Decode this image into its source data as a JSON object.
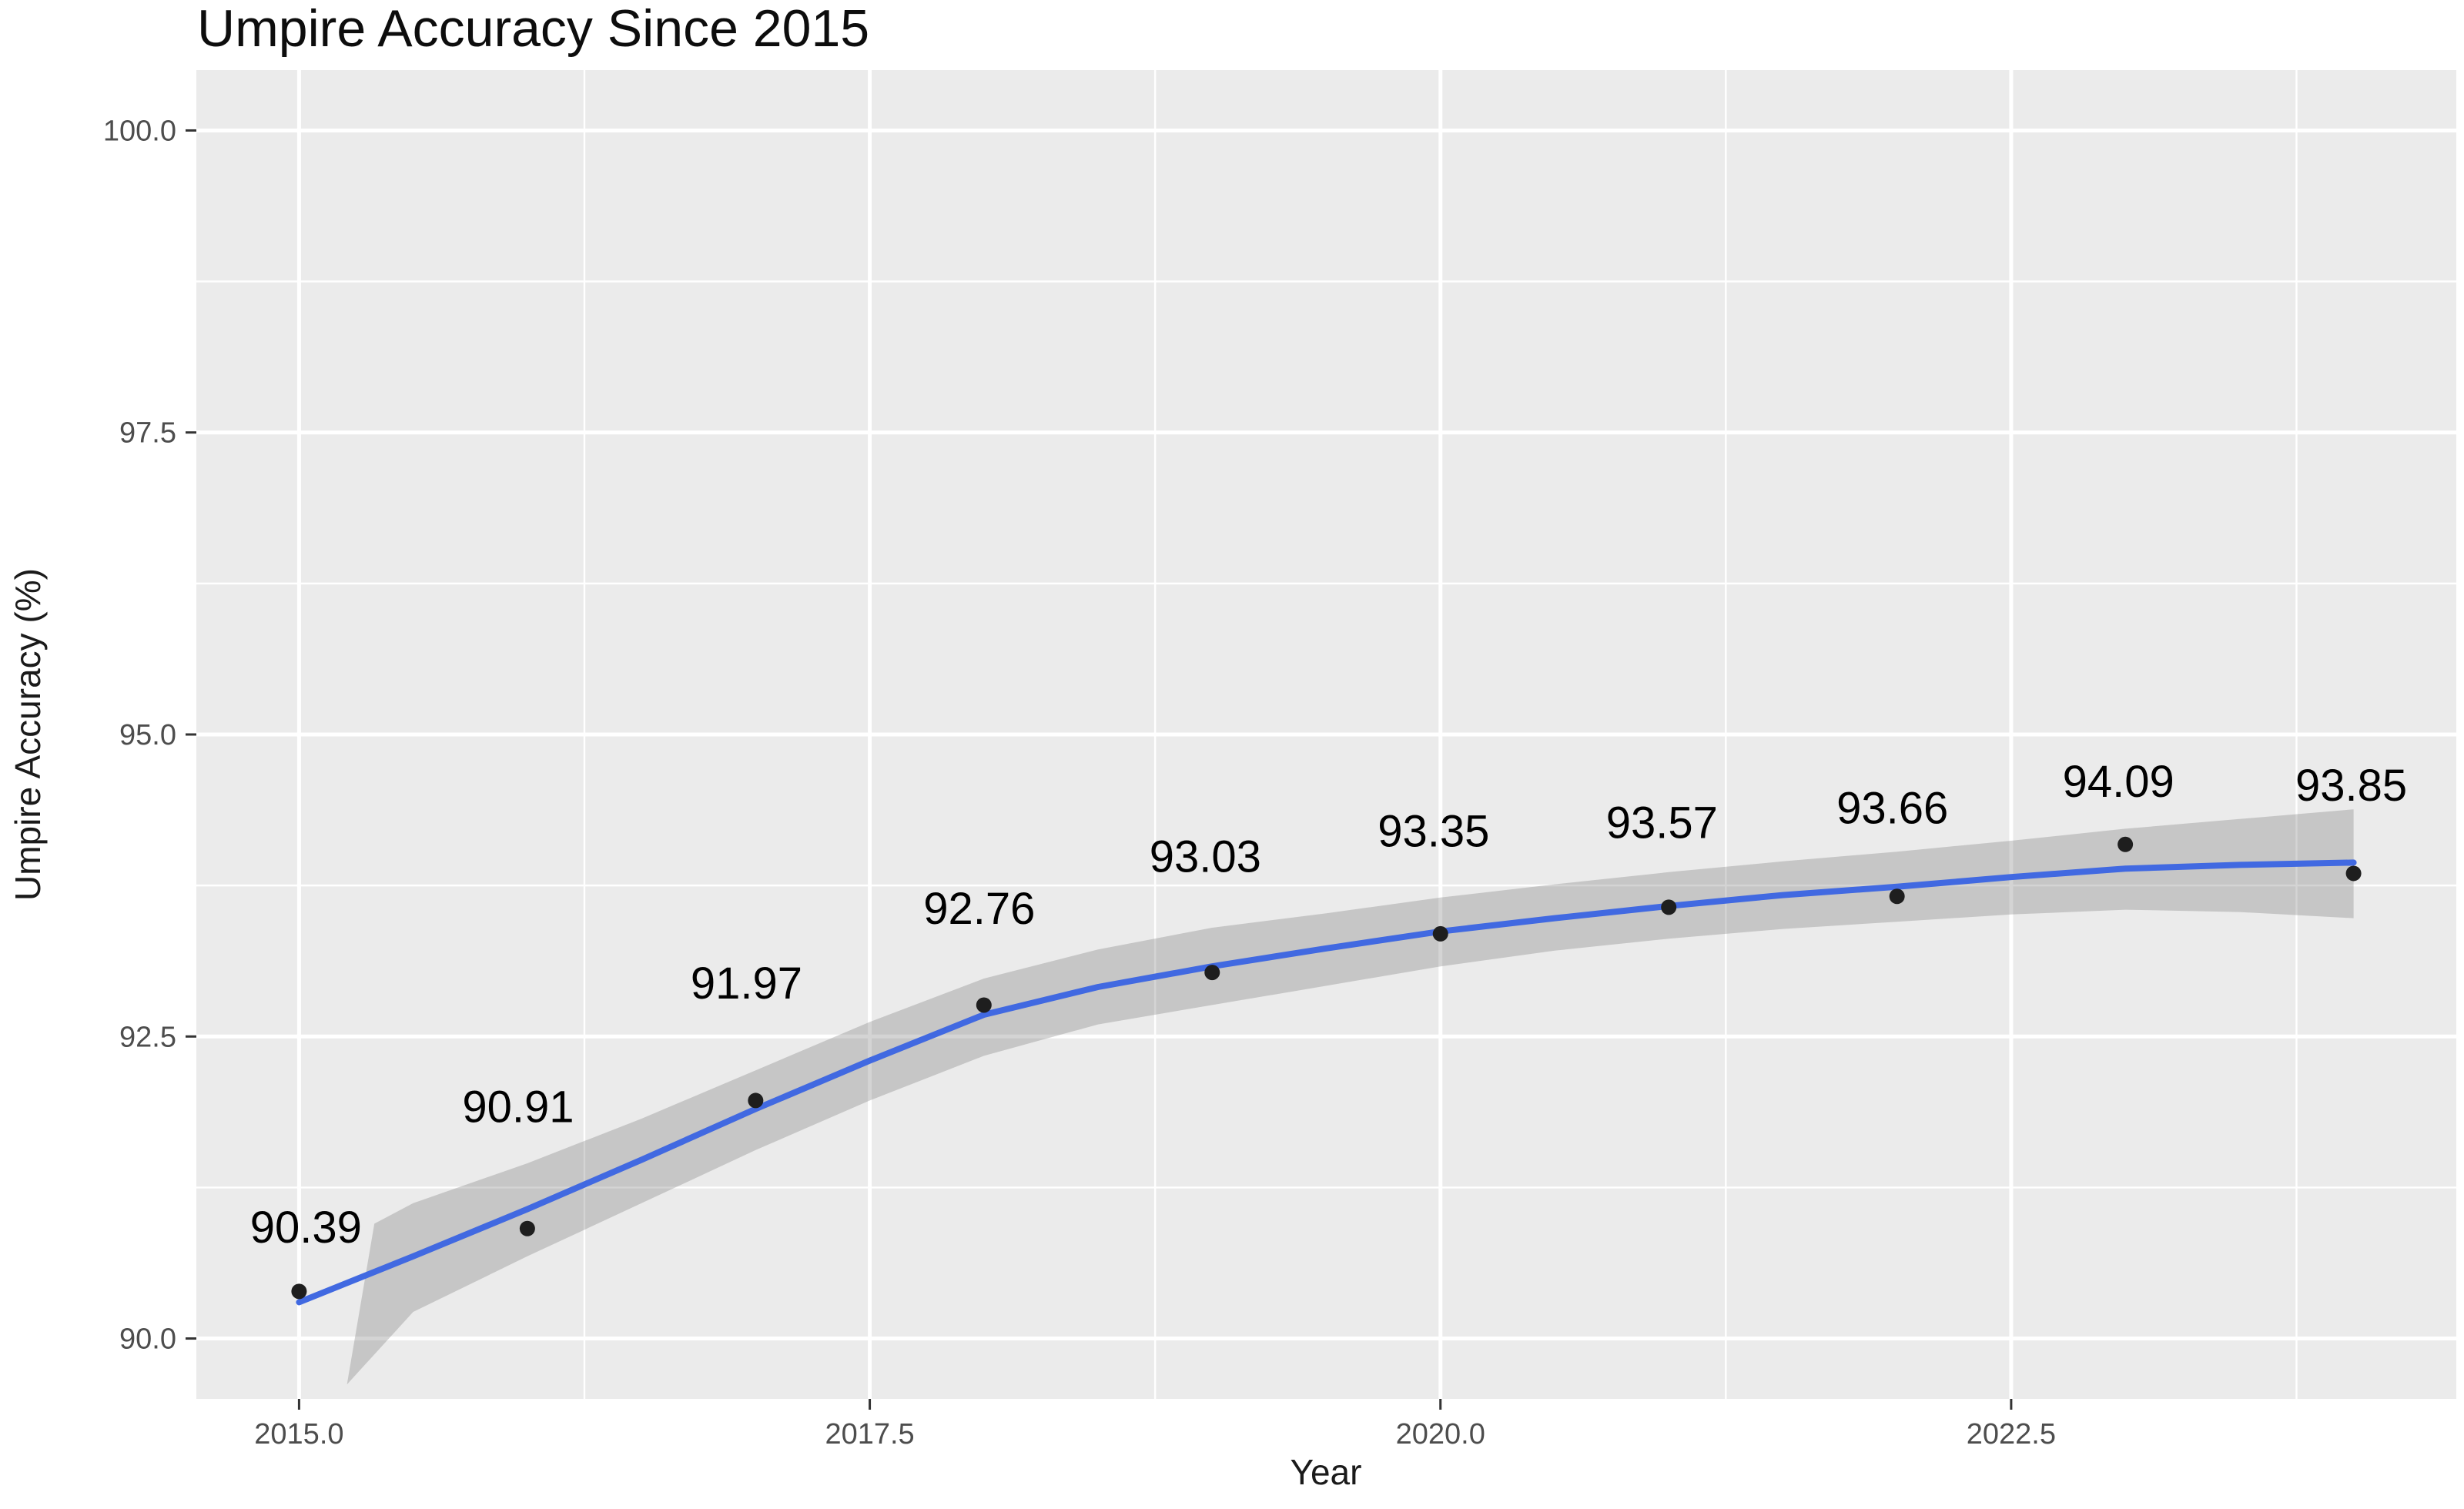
{
  "title": "Umpire Accuracy Since 2015",
  "chart_data": {
    "type": "scatter",
    "title": "Umpire Accuracy Since 2015",
    "xlabel": "Year",
    "ylabel": "Umpire Accuracy (%)",
    "legend": "none",
    "grid": "major-and-minor-white-on-gray-panel",
    "x_domain": [
      2014.55,
      2024.45
    ],
    "y_domain": [
      89.5,
      100.5
    ],
    "x_ticks": [
      2015.0,
      2017.5,
      2020.0,
      2022.5
    ],
    "x_tick_labels": [
      "2015.0",
      "2017.5",
      "2020.0",
      "2022.5"
    ],
    "x_minor_ticks": [
      2016.25,
      2018.75,
      2021.25,
      2023.75
    ],
    "y_ticks": [
      90.0,
      92.5,
      95.0,
      97.5,
      100.0
    ],
    "y_tick_labels": [
      "90.0",
      "92.5",
      "95.0",
      "97.5",
      "100.0"
    ],
    "y_minor_ticks": [
      91.25,
      93.75,
      96.25,
      98.75
    ],
    "points": [
      {
        "year": 2015,
        "value": 90.39,
        "label": "90.39",
        "label_dx": 0.03,
        "label_dy": 0.53
      },
      {
        "year": 2016,
        "value": 90.91,
        "label": "90.91",
        "label_dx": -0.04,
        "label_dy": 1.01
      },
      {
        "year": 2017,
        "value": 91.97,
        "label": "91.97",
        "label_dx": -0.04,
        "label_dy": 0.97
      },
      {
        "year": 2018,
        "value": 92.76,
        "label": "92.76",
        "label_dx": -0.02,
        "label_dy": 0.8
      },
      {
        "year": 2019,
        "value": 93.03,
        "label": "93.03",
        "label_dx": -0.03,
        "label_dy": 0.96
      },
      {
        "year": 2020,
        "value": 93.35,
        "label": "93.35",
        "label_dx": -0.03,
        "label_dy": 0.85
      },
      {
        "year": 2021,
        "value": 93.57,
        "label": "93.57",
        "label_dx": -0.03,
        "label_dy": 0.7
      },
      {
        "year": 2022,
        "value": 93.66,
        "label": "93.66",
        "label_dx": -0.02,
        "label_dy": 0.73
      },
      {
        "year": 2023,
        "value": 94.09,
        "label": "94.09",
        "label_dx": -0.03,
        "label_dy": 0.52
      },
      {
        "year": 2024,
        "value": 93.85,
        "label": "93.85",
        "label_dx": -0.01,
        "label_dy": 0.73
      }
    ],
    "smooth_line": {
      "x": [
        2015,
        2015.5,
        2016,
        2016.5,
        2017,
        2017.5,
        2018,
        2018.5,
        2019,
        2019.5,
        2020,
        2020.5,
        2021,
        2021.5,
        2022,
        2022.5,
        2023,
        2023.5,
        2024
      ],
      "y": [
        90.3,
        90.68,
        91.07,
        91.48,
        91.9,
        92.3,
        92.68,
        92.91,
        93.08,
        93.23,
        93.37,
        93.48,
        93.58,
        93.67,
        93.74,
        93.82,
        93.89,
        93.92,
        93.94
      ]
    },
    "ci_band": {
      "upper_x": [
        2015.33,
        2015.5,
        2016,
        2016.5,
        2017,
        2017.5,
        2018,
        2018.5,
        2019,
        2019.5,
        2020,
        2020.5,
        2021,
        2021.5,
        2022,
        2022.5,
        2023,
        2023.5,
        2024
      ],
      "upper_y": [
        90.95,
        91.12,
        91.45,
        91.82,
        92.22,
        92.62,
        92.98,
        93.22,
        93.4,
        93.52,
        93.65,
        93.76,
        93.86,
        93.95,
        94.03,
        94.12,
        94.22,
        94.3,
        94.38
      ],
      "lower_x": [
        2015.21,
        2015.5,
        2016,
        2016.5,
        2017,
        2017.5,
        2018,
        2018.5,
        2019,
        2019.5,
        2020,
        2020.5,
        2021,
        2021.5,
        2022,
        2022.5,
        2023,
        2023.5,
        2024
      ],
      "lower_y": [
        89.62,
        90.22,
        90.68,
        91.12,
        91.56,
        91.97,
        92.34,
        92.6,
        92.76,
        92.92,
        93.08,
        93.21,
        93.31,
        93.39,
        93.45,
        93.51,
        93.55,
        93.53,
        93.48
      ]
    },
    "colors": {
      "panel_background": "#EBEBEB",
      "outer_background": "#FFFFFF",
      "gridline": "#FFFFFF",
      "smooth_line": "#4169E1",
      "ci_band_fill": "rgba(125,125,125,0.33)",
      "point": "#1E1E1E",
      "point_label": "#000000",
      "tick_mark": "#333333",
      "tick_label": "#4D4D4D",
      "axis_title": "#1A1A1A",
      "title": "#0D0D0D"
    }
  }
}
